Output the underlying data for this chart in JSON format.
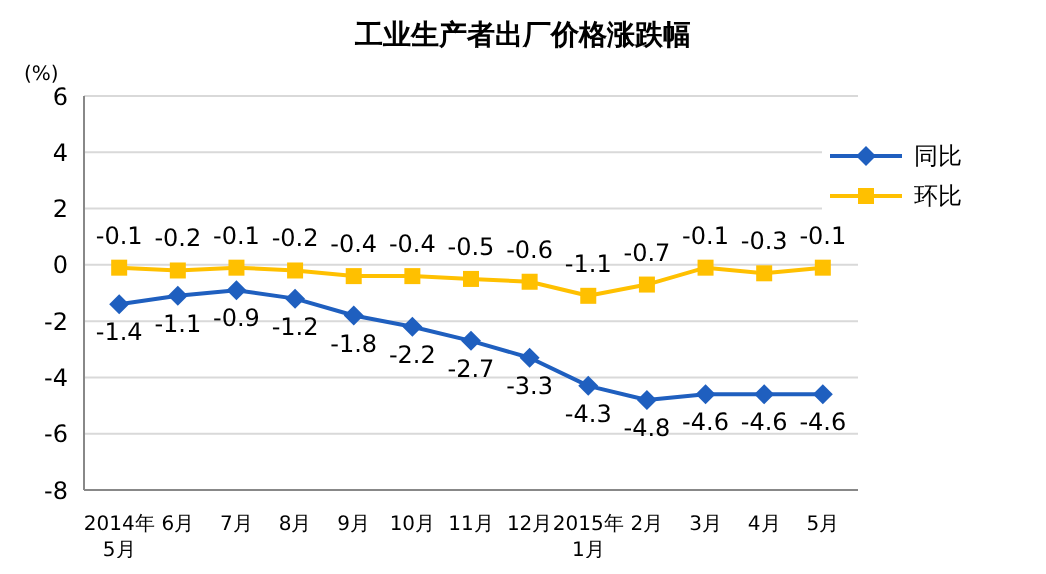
{
  "chart_data": {
    "type": "line",
    "title": "工业生产者出厂价格涨跌幅",
    "ylabel": "(%)",
    "categories": [
      "2014年\n5月",
      "6月",
      "7月",
      "8月",
      "9月",
      "10月",
      "11月",
      "12月",
      "2015年\n1月",
      "2月",
      "3月",
      "4月",
      "5月"
    ],
    "series": [
      {
        "name": "同比",
        "color": "#1f5fbf",
        "marker": "diamond",
        "values": [
          -1.4,
          -1.1,
          -0.9,
          -1.2,
          -1.8,
          -2.2,
          -2.7,
          -3.3,
          -4.3,
          -4.8,
          -4.6,
          -4.6,
          -4.6
        ]
      },
      {
        "name": "环比",
        "color": "#ffc000",
        "marker": "square",
        "values": [
          -0.1,
          -0.2,
          -0.1,
          -0.2,
          -0.4,
          -0.4,
          -0.5,
          -0.6,
          -1.1,
          -0.7,
          -0.1,
          -0.3,
          -0.1
        ]
      }
    ],
    "ylim": [
      -8,
      6
    ],
    "yticks": [
      -8,
      -6,
      -4,
      -2,
      0,
      2,
      4,
      6
    ],
    "grid": "y",
    "legend": "top right",
    "data_labels": true
  }
}
